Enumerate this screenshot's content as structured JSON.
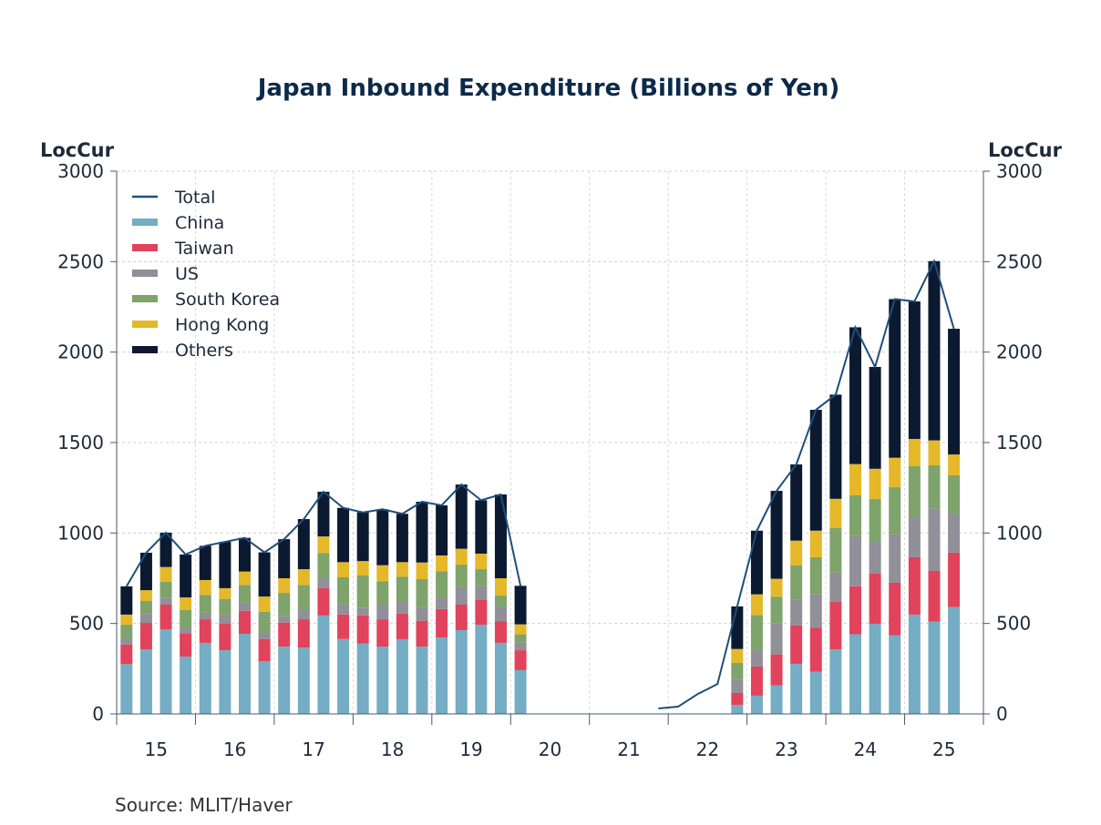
{
  "chart_data": {
    "type": "bar",
    "stacked": true,
    "title": "Japan Inbound Expenditure (Billions of Yen)",
    "ylabel_left": "LocCur",
    "ylabel_right": "LocCur",
    "ylim": [
      0,
      3000
    ],
    "yticks": [
      0,
      500,
      1000,
      1500,
      2000,
      2500,
      3000
    ],
    "xtick_labels": [
      "15",
      "16",
      "17",
      "18",
      "19",
      "20",
      "21",
      "22",
      "23",
      "24",
      "25"
    ],
    "x_start_year": 2015,
    "frequency": "quarterly",
    "grid": true,
    "legend_position": "top-left",
    "source": "Source:  MLIT/Haver",
    "x": [
      "2015Q1",
      "2015Q2",
      "2015Q3",
      "2015Q4",
      "2016Q1",
      "2016Q2",
      "2016Q3",
      "2016Q4",
      "2017Q1",
      "2017Q2",
      "2017Q3",
      "2017Q4",
      "2018Q1",
      "2018Q2",
      "2018Q3",
      "2018Q4",
      "2019Q1",
      "2019Q2",
      "2019Q3",
      "2019Q4",
      "2020Q1",
      "2020Q2",
      "2020Q3",
      "2020Q4",
      "2021Q1",
      "2021Q2",
      "2021Q3",
      "2021Q4",
      "2022Q1",
      "2022Q2",
      "2022Q3",
      "2022Q4",
      "2023Q1",
      "2023Q2",
      "2023Q3",
      "2023Q4",
      "2024Q1",
      "2024Q2",
      "2024Q3",
      "2024Q4",
      "2025Q1",
      "2025Q2",
      "2025Q3"
    ],
    "series": [
      {
        "name": "China",
        "kind": "bar",
        "color": "#74adc4",
        "values": [
          275,
          356,
          468,
          317,
          393,
          352,
          443,
          292,
          372,
          367,
          544,
          414,
          389,
          372,
          413,
          372,
          423,
          463,
          493,
          393,
          242,
          null,
          null,
          null,
          null,
          null,
          null,
          null,
          null,
          null,
          null,
          50,
          101,
          158,
          277,
          233,
          357,
          440,
          498,
          435,
          549,
          510,
          591
        ]
      },
      {
        "name": "Taiwan",
        "kind": "bar",
        "color": "#e0435b",
        "values": [
          109,
          147,
          136,
          126,
          130,
          146,
          127,
          122,
          133,
          156,
          151,
          136,
          156,
          151,
          142,
          143,
          157,
          141,
          138,
          120,
          110,
          null,
          null,
          null,
          null,
          null,
          null,
          null,
          null,
          null,
          null,
          66,
          161,
          171,
          213,
          243,
          262,
          266,
          279,
          290,
          317,
          282,
          301
        ]
      },
      {
        "name": "US",
        "kind": "bar",
        "color": "#918f97",
        "values": [
          34,
          49,
          37,
          35,
          37,
          46,
          41,
          34,
          35,
          51,
          55,
          57,
          40,
          81,
          69,
          75,
          64,
          96,
          77,
          78,
          44,
          null,
          null,
          null,
          null,
          null,
          null,
          null,
          null,
          null,
          null,
          72,
          90,
          171,
          141,
          185,
          163,
          277,
          174,
          268,
          219,
          344,
          215
        ]
      },
      {
        "name": "South Korea",
        "kind": "bar",
        "color": "#7ea36b",
        "values": [
          75,
          72,
          89,
          96,
          98,
          92,
          102,
          117,
          129,
          139,
          139,
          148,
          180,
          129,
          134,
          155,
          144,
          125,
          92,
          63,
          44,
          null,
          null,
          null,
          null,
          null,
          null,
          null,
          null,
          null,
          null,
          94,
          195,
          148,
          191,
          205,
          245,
          225,
          238,
          260,
          284,
          238,
          212
        ]
      },
      {
        "name": "Hong Kong",
        "kind": "bar",
        "color": "#e4b829",
        "values": [
          56,
          60,
          82,
          70,
          82,
          59,
          74,
          84,
          81,
          87,
          92,
          84,
          80,
          89,
          81,
          92,
          88,
          88,
          86,
          96,
          55,
          null,
          null,
          null,
          null,
          null,
          null,
          null,
          null,
          null,
          null,
          77,
          114,
          99,
          136,
          147,
          162,
          173,
          166,
          163,
          151,
          138,
          115
        ]
      },
      {
        "name": "Others",
        "kind": "bar",
        "color": "#0b1a30",
        "values": [
          156,
          207,
          190,
          237,
          189,
          256,
          186,
          244,
          216,
          277,
          247,
          300,
          269,
          309,
          267,
          336,
          277,
          355,
          295,
          463,
          213,
          null,
          null,
          null,
          null,
          null,
          null,
          null,
          null,
          null,
          null,
          235,
          352,
          486,
          421,
          668,
          576,
          756,
          563,
          877,
          760,
          991,
          695
        ]
      }
    ],
    "total": {
      "name": "Total",
      "kind": "line",
      "color": "#1f4e79",
      "values": [
        705,
        891,
        1002,
        881,
        929,
        951,
        973,
        893,
        966,
        1077,
        1228,
        1139,
        1114,
        1131,
        1106,
        1173,
        1153,
        1268,
        1181,
        1213,
        708,
        null,
        null,
        null,
        null,
        null,
        null,
        30,
        40,
        110,
        165,
        594,
        1013,
        1233,
        1379,
        1681,
        1765,
        2137,
        1918,
        2293,
        2280,
        2503,
        2129
      ]
    }
  }
}
